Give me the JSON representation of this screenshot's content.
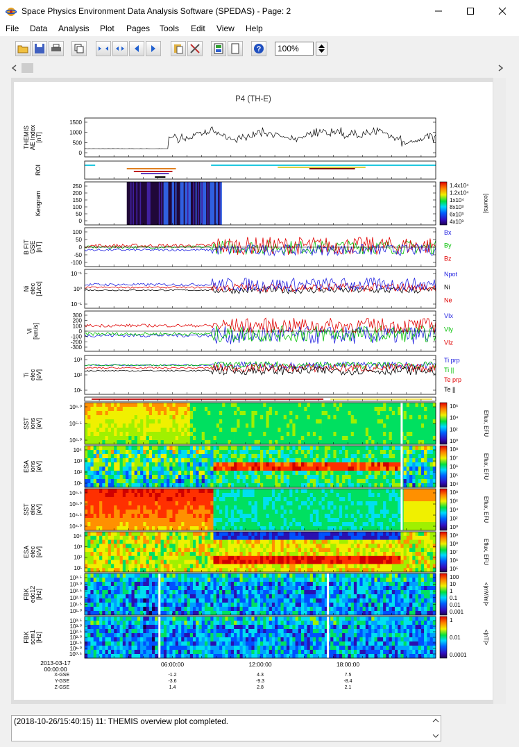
{
  "window": {
    "title": "Space Physics Environment Data Analysis Software (SPEDAS) - Page: 2",
    "minimize_icon": "minimize-icon",
    "maximize_icon": "maximize-icon",
    "close_icon": "close-icon"
  },
  "menu": [
    "File",
    "Data",
    "Analysis",
    "Plot",
    "Pages",
    "Tools",
    "Edit",
    "View",
    "Help"
  ],
  "toolbar": {
    "buttons": [
      "open-folder-icon",
      "save-icon",
      "print-icon",
      "copy-page-icon",
      "compress-icon",
      "expand-icon",
      "step-back-icon",
      "step-forward-icon",
      "paste-icon",
      "tools-icon",
      "layout-icon",
      "blank-page-icon",
      "help-icon"
    ],
    "zoom_value": "100%"
  },
  "plot": {
    "title": "P4 (TH-E)",
    "panels": [
      {
        "id": "ae",
        "ylabel": [
          "THEMIS",
          "AE Index",
          "[nT]"
        ],
        "yticks": [
          "1500",
          "1000",
          "500",
          "0"
        ],
        "ylim": [
          -200,
          1800
        ]
      },
      {
        "id": "roi",
        "ylabel": [
          "ROI"
        ],
        "yticks": []
      },
      {
        "id": "keogram",
        "ylabel": [
          "Keogram"
        ],
        "yticks": [
          "250",
          "200",
          "150",
          "100",
          "50",
          "0"
        ],
        "colorbar": {
          "ticks": [
            "1.4x10⁴",
            "1.2x10⁴",
            "1x10⁴",
            "8x10³",
            "6x10³",
            "4x10³"
          ],
          "label": "[counts]"
        }
      },
      {
        "id": "bfit",
        "ylabel": [
          "B FIT",
          "GSE",
          "[nT]"
        ],
        "yticks": [
          "100",
          "50",
          "0",
          "-50",
          "-100"
        ],
        "ylim": [
          -130,
          130
        ],
        "legend": [
          {
            "name": "Bx",
            "color": "#2020e0"
          },
          {
            "name": "By",
            "color": "#00c000"
          },
          {
            "name": "Bz",
            "color": "#e00000"
          }
        ]
      },
      {
        "id": "ni",
        "ylabel": [
          "Ni",
          "elec",
          "[1/cc]"
        ],
        "yticks": [
          "10⁻¹",
          "10⁰",
          "10⁻¹"
        ],
        "legend": [
          {
            "name": "Npot",
            "color": "#2020e0"
          },
          {
            "name": "Ni",
            "color": "#000000"
          },
          {
            "name": "Ne",
            "color": "#e00000"
          }
        ]
      },
      {
        "id": "vi",
        "ylabel": [
          "Vi",
          "[km/s]"
        ],
        "yticks": [
          "300",
          "200",
          "100",
          "0",
          "-100",
          "-200",
          "-300"
        ],
        "ylim": [
          -320,
          320
        ],
        "legend": [
          {
            "name": "VIx",
            "color": "#2020e0"
          },
          {
            "name": "VIy",
            "color": "#00c000"
          },
          {
            "name": "VIz",
            "color": "#e00000"
          }
        ]
      },
      {
        "id": "ti",
        "ylabel": [
          "Ti",
          "elec",
          "[eV]"
        ],
        "yticks": [
          "10³",
          "10²",
          "10¹"
        ],
        "legend": [
          {
            "name": "Ti prp",
            "color": "#2020e0"
          },
          {
            "name": "Ti ||",
            "color": "#00c000"
          },
          {
            "name": "Te prp",
            "color": "#e00000"
          },
          {
            "name": "Te ||",
            "color": "#000000"
          }
        ]
      },
      {
        "id": "mode",
        "ylabel": [],
        "yticks": []
      },
      {
        "id": "sst-ions",
        "ylabel": [
          "SST",
          "ions",
          "[eV]"
        ],
        "yticks": [
          "10⁶·⁰",
          "10⁵·⁵",
          "10⁵·⁰"
        ],
        "colorbar": {
          "ticks": [
            "10⁶",
            "10⁴",
            "10²",
            "10⁰"
          ],
          "label": "Eflux, EFU"
        }
      },
      {
        "id": "esa-ions",
        "ylabel": [
          "ESA",
          "ions",
          "[eV]"
        ],
        "yticks": [
          "10⁴",
          "10³",
          "10²",
          "10¹"
        ],
        "colorbar": {
          "ticks": [
            "10⁸",
            "10⁷",
            "10⁶",
            "10⁵",
            "10⁴"
          ],
          "label": "Eflux, EFU"
        }
      },
      {
        "id": "sst-elec",
        "ylabel": [
          "SST",
          "elec",
          "[eV]"
        ],
        "yticks": [
          "10⁵·⁵",
          "10⁵·⁰",
          "10⁴·⁵",
          "10⁴·⁰"
        ],
        "colorbar": {
          "ticks": [
            "10⁸",
            "10⁶",
            "10⁴",
            "10²",
            "10⁰"
          ],
          "label": "Eflux, EFU"
        }
      },
      {
        "id": "esa-elec",
        "ylabel": [
          "ESA",
          "elec",
          "[eV]"
        ],
        "yticks": [
          "10⁴",
          "10³",
          "10²",
          "10¹"
        ],
        "colorbar": {
          "ticks": [
            "10⁹",
            "10⁸",
            "10⁷",
            "10⁶",
            "10⁵"
          ],
          "label": "Eflux, EFU"
        }
      },
      {
        "id": "fbk-edc",
        "ylabel": [
          "FBK",
          "edc12",
          "[Hz]"
        ],
        "yticks": [
          "10³·⁵",
          "10³·⁰",
          "10²·⁵",
          "10²·⁰",
          "10¹·⁵",
          "10¹·⁰"
        ],
        "colorbar": {
          "ticks": [
            "100",
            "10",
            "1",
            "0.1",
            "0.01",
            "0.001"
          ],
          "label": "<|mV/m|>"
        }
      },
      {
        "id": "fbk-scm",
        "ylabel": [
          "FBK",
          "scm1",
          "[Hz]"
        ],
        "yticks": [
          "10³·⁵",
          "10³·⁰",
          "10²·⁵",
          "10²·⁰",
          "10¹·⁵",
          "10¹·⁰",
          "10⁰·⁵"
        ],
        "colorbar": {
          "ticks": [
            "1",
            "0.01",
            "0.0001"
          ],
          "label": "<|nT|>"
        }
      }
    ],
    "time_axis": {
      "start": [
        "2013-03-17",
        "00:00:00"
      ],
      "ticks": [
        "06:00:00",
        "12:00:00",
        "18:00:00"
      ],
      "ephemeris": [
        {
          "label": "X-GSE",
          "values": [
            "-1.2",
            "4.3",
            "7.5"
          ]
        },
        {
          "label": "Y-GSE",
          "values": [
            "-3.6",
            "-9.3",
            "-8.4"
          ]
        },
        {
          "label": "Z-GSE",
          "values": [
            "1.4",
            "2.8",
            "2.1"
          ]
        }
      ]
    }
  },
  "status_bar": {
    "message": "(2018-10-26/15:40:15) 11: THEMIS overview plot completed."
  }
}
